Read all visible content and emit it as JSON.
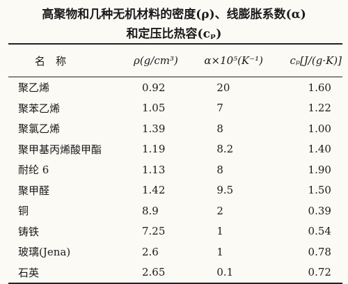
{
  "title": {
    "line1": "高聚物和几种无机材料的密度(ρ)、线膨胀系数(α)",
    "line2": "和定压比热容(cₚ)"
  },
  "table": {
    "header": [
      "名　称",
      "ρ(g/cm³)",
      "α×10⁵(K⁻¹)",
      "cₚ[J/(g·K)]"
    ],
    "rows": [
      [
        "聚乙烯",
        "0.92",
        "20",
        "1.60"
      ],
      [
        "聚苯乙烯",
        "1.05",
        "7",
        "1.22"
      ],
      [
        "聚氯乙烯",
        "1.39",
        "8",
        "1.00"
      ],
      [
        "聚甲基丙烯酸甲酯",
        "1.19",
        "8.2",
        "1.40"
      ],
      [
        "耐纶 6",
        "1.13",
        "8",
        "1.90"
      ],
      [
        "聚甲醛",
        "1.42",
        "9.5",
        "1.50"
      ],
      [
        "铜",
        "8.9",
        "2",
        "0.39"
      ],
      [
        "铸铁",
        "7.25",
        "1",
        "0.54"
      ],
      [
        "玻璃(Jena)",
        "2.6",
        "1",
        "0.78"
      ],
      [
        "石英",
        "2.65",
        "0.1",
        "0.72"
      ]
    ]
  }
}
